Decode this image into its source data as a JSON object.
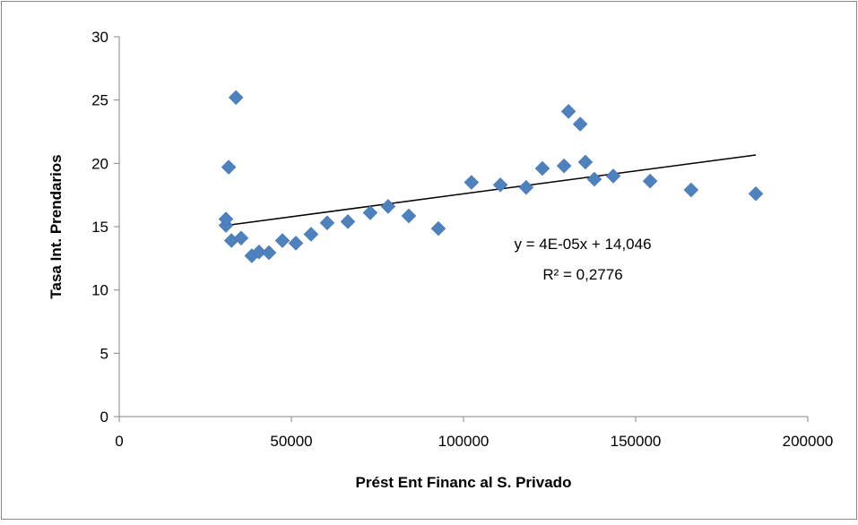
{
  "chart_data": {
    "type": "scatter",
    "x_label": "Prést Ent Financ al S. Privado",
    "y_label": "Tasa Int. Prendarios",
    "series": [
      {
        "name": "Tasa Int. Prendarios",
        "color": "#4f81bd",
        "x": [
          31000,
          31000,
          31800,
          33900,
          32600,
          35400,
          38500,
          40600,
          43500,
          47400,
          51300,
          55700,
          60400,
          66400,
          72900,
          78100,
          84100,
          92700,
          102300,
          110700,
          118200,
          122900,
          129200,
          130500,
          133900,
          135400,
          138000,
          143500,
          154200,
          166100,
          184900
        ],
        "values": [
          15.1,
          15.6,
          19.7,
          25.2,
          13.9,
          14.1,
          12.7,
          13.0,
          12.95,
          13.9,
          13.7,
          14.4,
          15.3,
          15.4,
          16.1,
          16.6,
          15.85,
          14.85,
          18.5,
          18.3,
          18.1,
          19.6,
          19.8,
          24.1,
          23.1,
          20.1,
          18.75,
          19.0,
          18.6,
          17.9,
          17.6
        ]
      }
    ],
    "trendline": {
      "color": "#000000",
      "x": [
        31000,
        184900
      ],
      "values": [
        15.1,
        20.66
      ]
    },
    "annotations": [
      "y = 4E-05x + 14,046",
      "R² = 0,2776"
    ],
    "xlim": [
      0,
      200000
    ],
    "xticks": [
      0,
      50000,
      100000,
      150000,
      200000
    ],
    "ylim": [
      0,
      30
    ],
    "yticks": [
      0,
      5,
      10,
      15,
      20,
      25,
      30
    ]
  }
}
